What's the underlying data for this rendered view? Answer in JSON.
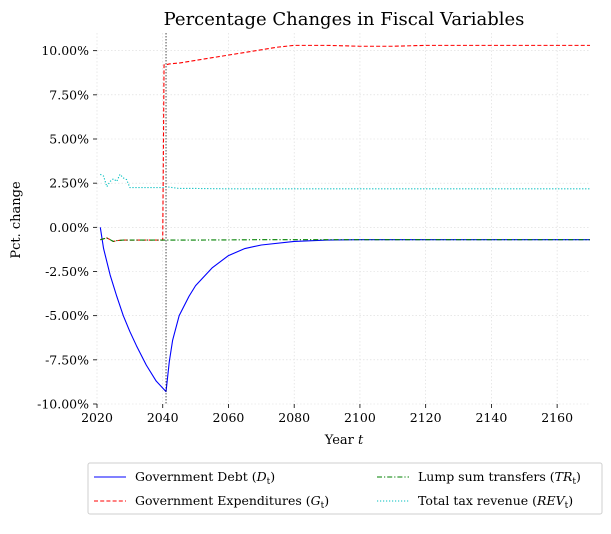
{
  "chart_data": {
    "type": "line",
    "title": "Percentage Changes in Fiscal Variables",
    "xlabel": "Year t",
    "ylabel": "Pct. change",
    "xlim": [
      2020,
      2170
    ],
    "ylim": [
      -10.0,
      11.0
    ],
    "x_ticks": [
      2020,
      2040,
      2060,
      2080,
      2100,
      2120,
      2140,
      2160
    ],
    "y_ticks": [
      -10.0,
      -7.5,
      -5.0,
      -2.5,
      0.0,
      2.5,
      5.0,
      7.5,
      10.0
    ],
    "y_tick_labels": [
      "-10.00%",
      "-7.50%",
      "-5.00%",
      "-2.50%",
      "0.00%",
      "2.50%",
      "5.00%",
      "7.50%",
      "10.00%"
    ],
    "grid": true,
    "vertical_marker_x": 2041,
    "legend_placement": "bottom-center, below axes, 2 columns",
    "series": [
      {
        "name": "Government Debt (D_t)",
        "legend_main": "Government Debt (",
        "legend_sym": "D",
        "legend_sub": "t",
        "legend_end": ")",
        "color": "#0000ff",
        "style": "solid",
        "x": [
          2021,
          2022,
          2024,
          2026,
          2028,
          2030,
          2032,
          2035,
          2038,
          2041,
          2042,
          2043,
          2045,
          2048,
          2050,
          2055,
          2060,
          2065,
          2070,
          2080,
          2090,
          2100,
          2120,
          2140,
          2170
        ],
        "values": [
          0.0,
          -1.2,
          -2.7,
          -3.9,
          -5.0,
          -5.9,
          -6.7,
          -7.8,
          -8.7,
          -9.3,
          -7.6,
          -6.4,
          -5.0,
          -3.9,
          -3.3,
          -2.3,
          -1.6,
          -1.2,
          -1.0,
          -0.8,
          -0.72,
          -0.7,
          -0.7,
          -0.7,
          -0.7
        ]
      },
      {
        "name": "Government Expenditures (G_t)",
        "legend_main": "Government Expenditures (",
        "legend_sym": "G",
        "legend_sub": "t",
        "legend_end": ")",
        "color": "#ff0000",
        "style": "dashed",
        "x": [
          2021,
          2023,
          2024,
          2025,
          2026,
          2028,
          2030,
          2035,
          2040,
          2040.4,
          2041,
          2042,
          2045,
          2050,
          2055,
          2060,
          2065,
          2070,
          2075,
          2080,
          2085,
          2090,
          2100,
          2110,
          2120,
          2140,
          2160,
          2170
        ],
        "values": [
          -0.7,
          -0.6,
          -0.7,
          -0.8,
          -0.75,
          -0.72,
          -0.72,
          -0.72,
          -0.72,
          9.2,
          9.2,
          9.25,
          9.3,
          9.45,
          9.6,
          9.75,
          9.9,
          10.05,
          10.2,
          10.3,
          10.3,
          10.3,
          10.25,
          10.25,
          10.3,
          10.3,
          10.3,
          10.3
        ]
      },
      {
        "name": "Lump sum transfers (TR_t)",
        "legend_main": "Lump sum transfers (",
        "legend_sym": "TR",
        "legend_sub": "t",
        "legend_end": ")",
        "color": "#008000",
        "style": "dashdot",
        "x": [
          2021,
          2023,
          2024,
          2025,
          2026,
          2028,
          2030,
          2035,
          2040,
          2050,
          2060,
          2070,
          2080,
          2100,
          2120,
          2140,
          2170
        ],
        "values": [
          -0.7,
          -0.6,
          -0.7,
          -0.8,
          -0.75,
          -0.72,
          -0.72,
          -0.72,
          -0.72,
          -0.72,
          -0.71,
          -0.7,
          -0.7,
          -0.7,
          -0.7,
          -0.7,
          -0.7
        ]
      },
      {
        "name": "Total tax revenue (REV_t)",
        "legend_main": "Total tax revenue (",
        "legend_sym": "REV",
        "legend_sub": "t",
        "legend_end": ")",
        "color": "#00bfbf",
        "style": "dotted",
        "x": [
          2021,
          2022,
          2023,
          2024,
          2025,
          2026,
          2027,
          2028,
          2029,
          2030,
          2032,
          2035,
          2040,
          2041,
          2045,
          2050,
          2060,
          2080,
          2100,
          2120,
          2140,
          2160,
          2170
        ],
        "values": [
          3.0,
          2.9,
          2.3,
          2.6,
          2.75,
          2.6,
          3.0,
          2.8,
          2.7,
          2.25,
          2.25,
          2.25,
          2.25,
          2.3,
          2.2,
          2.2,
          2.18,
          2.18,
          2.18,
          2.18,
          2.18,
          2.18,
          2.18
        ]
      }
    ]
  }
}
